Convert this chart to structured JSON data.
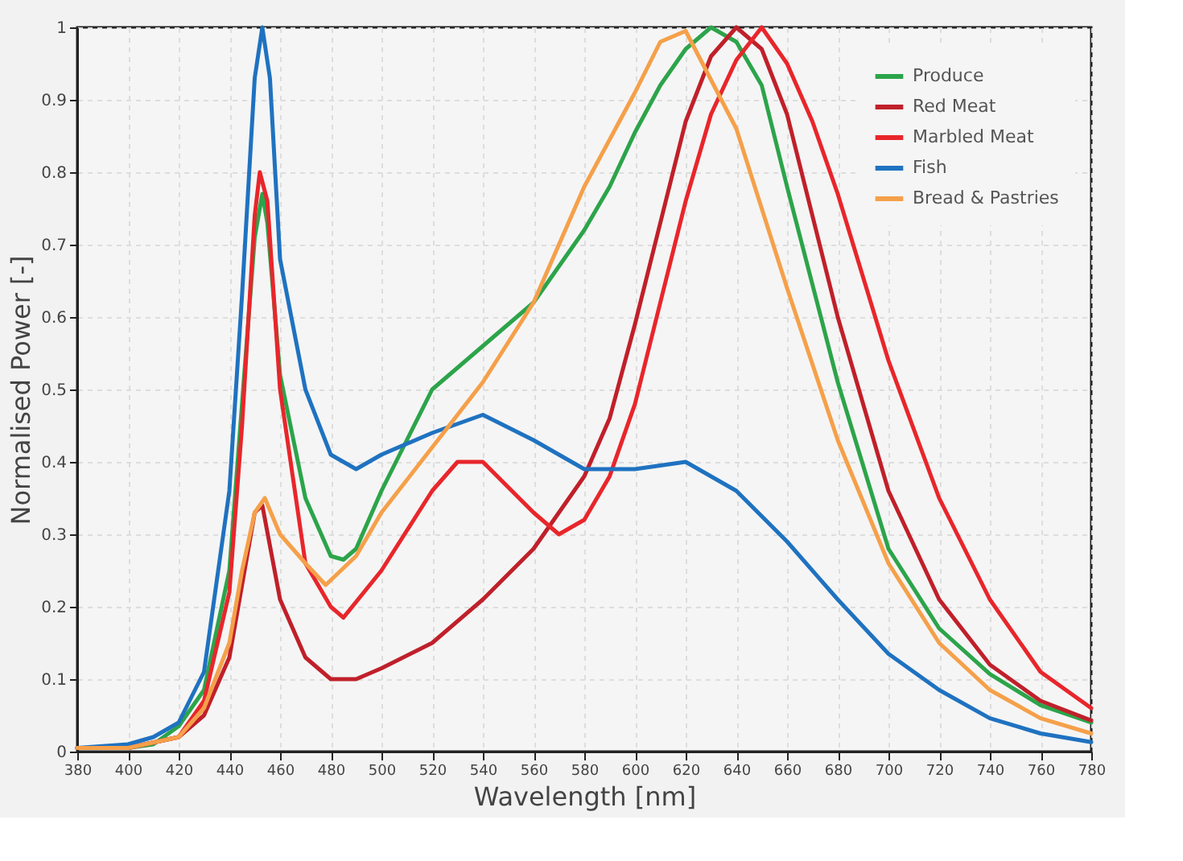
{
  "chart_data": {
    "type": "line",
    "xlabel": "Wavelength [nm]",
    "ylabel": "Normalised Power [-]",
    "xlim": [
      380,
      780
    ],
    "ylim": [
      0,
      1
    ],
    "xticks": [
      380,
      400,
      420,
      440,
      460,
      480,
      500,
      520,
      540,
      560,
      580,
      600,
      620,
      640,
      660,
      680,
      700,
      720,
      740,
      760,
      780
    ],
    "yticks": [
      0,
      0.1,
      0.2,
      0.3,
      0.4,
      0.5,
      0.6,
      0.7,
      0.8,
      0.9,
      1
    ],
    "grid": true,
    "legend": "top right",
    "line_style": "solid",
    "marker": "none",
    "series": [
      {
        "name": "Produce",
        "color": "#2ca44a",
        "x": [
          380,
          400,
          410,
          420,
          430,
          440,
          445,
          450,
          453,
          455,
          460,
          470,
          480,
          485,
          490,
          500,
          520,
          540,
          560,
          580,
          590,
          600,
          610,
          620,
          630,
          640,
          650,
          660,
          680,
          700,
          720,
          740,
          760,
          780
        ],
        "values": [
          0.005,
          0.005,
          0.01,
          0.035,
          0.085,
          0.25,
          0.48,
          0.71,
          0.77,
          0.73,
          0.52,
          0.35,
          0.27,
          0.265,
          0.28,
          0.36,
          0.5,
          0.56,
          0.62,
          0.72,
          0.78,
          0.855,
          0.92,
          0.97,
          1.0,
          0.98,
          0.92,
          0.78,
          0.51,
          0.28,
          0.17,
          0.107,
          0.064,
          0.04
        ]
      },
      {
        "name": "Red Meat",
        "color": "#c0202a",
        "x": [
          380,
          400,
          420,
          430,
          440,
          445,
          450,
          453,
          460,
          470,
          480,
          490,
          500,
          520,
          540,
          560,
          580,
          590,
          600,
          610,
          620,
          630,
          640,
          650,
          660,
          680,
          700,
          720,
          740,
          760,
          780
        ],
        "values": [
          0.005,
          0.005,
          0.02,
          0.05,
          0.13,
          0.23,
          0.33,
          0.34,
          0.21,
          0.13,
          0.1,
          0.1,
          0.115,
          0.15,
          0.21,
          0.28,
          0.38,
          0.46,
          0.59,
          0.73,
          0.87,
          0.96,
          1.0,
          0.97,
          0.88,
          0.6,
          0.36,
          0.21,
          0.12,
          0.07,
          0.043
        ]
      },
      {
        "name": "Marbled Meat",
        "color": "#e8262b",
        "x": [
          380,
          400,
          420,
          430,
          440,
          445,
          450,
          452,
          455,
          460,
          470,
          480,
          485,
          500,
          520,
          530,
          540,
          560,
          570,
          580,
          590,
          600,
          610,
          620,
          630,
          640,
          650,
          660,
          670,
          680,
          700,
          720,
          740,
          760,
          780
        ],
        "values": [
          0.005,
          0.005,
          0.02,
          0.07,
          0.22,
          0.45,
          0.74,
          0.8,
          0.76,
          0.5,
          0.26,
          0.2,
          0.185,
          0.25,
          0.36,
          0.4,
          0.4,
          0.33,
          0.3,
          0.32,
          0.38,
          0.48,
          0.62,
          0.76,
          0.88,
          0.955,
          1.0,
          0.95,
          0.87,
          0.77,
          0.54,
          0.35,
          0.21,
          0.11,
          0.06
        ]
      },
      {
        "name": "Fish",
        "color": "#1f72c0",
        "x": [
          380,
          400,
          410,
          420,
          430,
          440,
          445,
          450,
          453,
          456,
          460,
          470,
          480,
          490,
          500,
          520,
          540,
          560,
          580,
          600,
          620,
          640,
          660,
          680,
          700,
          720,
          740,
          760,
          780
        ],
        "values": [
          0.005,
          0.01,
          0.02,
          0.04,
          0.11,
          0.36,
          0.63,
          0.93,
          1.0,
          0.93,
          0.68,
          0.5,
          0.41,
          0.39,
          0.41,
          0.44,
          0.465,
          0.43,
          0.39,
          0.39,
          0.4,
          0.36,
          0.29,
          0.21,
          0.135,
          0.085,
          0.046,
          0.025,
          0.013
        ]
      },
      {
        "name": "Bread & Pastries",
        "color": "#f5a04a",
        "x": [
          380,
          400,
          420,
          430,
          440,
          445,
          450,
          454,
          460,
          470,
          478,
          490,
          500,
          520,
          540,
          560,
          580,
          600,
          610,
          620,
          640,
          660,
          680,
          700,
          720,
          740,
          760,
          780
        ],
        "values": [
          0.005,
          0.005,
          0.02,
          0.06,
          0.15,
          0.25,
          0.33,
          0.35,
          0.3,
          0.26,
          0.23,
          0.27,
          0.33,
          0.42,
          0.51,
          0.62,
          0.78,
          0.91,
          0.98,
          0.995,
          0.86,
          0.64,
          0.43,
          0.26,
          0.15,
          0.085,
          0.046,
          0.025
        ]
      }
    ]
  }
}
